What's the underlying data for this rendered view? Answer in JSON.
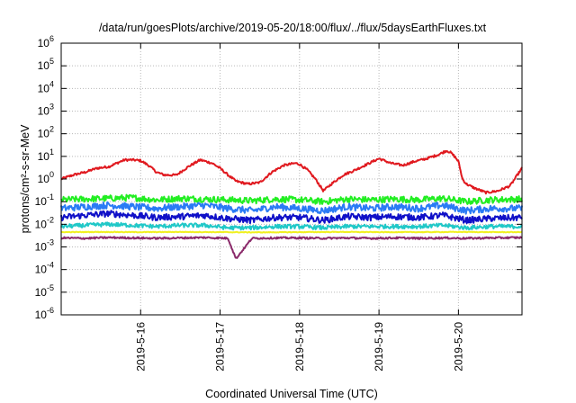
{
  "chart_data": {
    "type": "line",
    "title": "/data/run/goesPlots/archive/2019-05-20/18:00/flux/../flux/5daysEarthFluxes.txt",
    "xlabel": "Coordinated Universal Time (UTC)",
    "ylabel": "protons/cm²-s-sr-MeV",
    "y_scale": "log",
    "ylim_exp": [
      -6,
      6
    ],
    "y_tick_exps": [
      -6,
      -5,
      -4,
      -3,
      -2,
      -1,
      0,
      1,
      2,
      3,
      4,
      5,
      6
    ],
    "xlim_days": [
      0,
      5.8
    ],
    "x_tick_labels": [
      "2019-5-16",
      "2019-5-17",
      "2019-5-18",
      "2019-5-19",
      "2019-5-20"
    ],
    "x_tick_days": [
      1,
      2,
      3,
      4,
      5
    ],
    "grid": true,
    "legend": "none",
    "series": [
      {
        "color": "#e0191f",
        "x": [
          0,
          0.15,
          0.3,
          0.45,
          0.6,
          0.75,
          0.8,
          0.9,
          1.0,
          1.1,
          1.2,
          1.3,
          1.45,
          1.6,
          1.75,
          1.9,
          2.0,
          2.1,
          2.2,
          2.35,
          2.5,
          2.65,
          2.8,
          2.95,
          3.0,
          3.1,
          3.2,
          3.3,
          3.4,
          3.55,
          3.7,
          3.85,
          4.0,
          4.15,
          4.3,
          4.45,
          4.6,
          4.75,
          4.85,
          4.9,
          4.95,
          5.0,
          5.05,
          5.1,
          5.2,
          5.35,
          5.5,
          5.65,
          5.8
        ],
        "y": [
          1.0,
          1.5,
          2.0,
          3.0,
          3.5,
          6.0,
          7.0,
          7.0,
          6.5,
          4.0,
          2.0,
          1.5,
          1.5,
          3.5,
          7.0,
          5.0,
          3.0,
          1.5,
          0.8,
          0.6,
          0.7,
          2.0,
          4.0,
          5.0,
          4.5,
          2.5,
          1.0,
          0.3,
          0.6,
          1.5,
          2.5,
          4.5,
          8.0,
          5.0,
          4.0,
          6.0,
          8.0,
          12.0,
          18.0,
          15.0,
          10.0,
          6.0,
          1.0,
          0.6,
          0.4,
          0.25,
          0.3,
          0.5,
          3.0
        ]
      },
      {
        "color": "#22ee22",
        "x": [
          0,
          0.3,
          0.6,
          0.9,
          1.2,
          1.5,
          1.8,
          2.1,
          2.4,
          2.7,
          3.0,
          3.3,
          3.6,
          3.9,
          4.2,
          4.5,
          4.8,
          5.1,
          5.4,
          5.8
        ],
        "y": [
          0.12,
          0.13,
          0.14,
          0.15,
          0.12,
          0.14,
          0.13,
          0.12,
          0.11,
          0.13,
          0.12,
          0.1,
          0.13,
          0.12,
          0.13,
          0.12,
          0.14,
          0.1,
          0.12,
          0.13
        ]
      },
      {
        "color": "#2a7bf5",
        "x": [
          0,
          0.3,
          0.6,
          0.9,
          1.2,
          1.5,
          1.8,
          2.1,
          2.4,
          2.7,
          3.0,
          3.3,
          3.6,
          3.9,
          4.2,
          4.5,
          4.8,
          5.1,
          5.4,
          5.8
        ],
        "y": [
          0.05,
          0.06,
          0.07,
          0.06,
          0.05,
          0.06,
          0.07,
          0.05,
          0.04,
          0.06,
          0.05,
          0.04,
          0.06,
          0.05,
          0.06,
          0.05,
          0.07,
          0.04,
          0.05,
          0.05
        ]
      },
      {
        "color": "#1010c8",
        "x": [
          0,
          0.3,
          0.6,
          0.9,
          1.2,
          1.5,
          1.8,
          2.1,
          2.4,
          2.7,
          3.0,
          3.3,
          3.6,
          3.9,
          4.2,
          4.5,
          4.8,
          5.1,
          5.4,
          5.8
        ],
        "y": [
          0.02,
          0.025,
          0.03,
          0.025,
          0.02,
          0.022,
          0.025,
          0.018,
          0.015,
          0.02,
          0.02,
          0.015,
          0.022,
          0.02,
          0.022,
          0.02,
          0.025,
          0.015,
          0.018,
          0.02
        ]
      },
      {
        "color": "#20c8c8",
        "x": [
          0,
          0.3,
          0.6,
          0.9,
          1.2,
          1.5,
          1.8,
          2.1,
          2.4,
          2.7,
          3.0,
          3.3,
          3.6,
          3.9,
          4.2,
          4.5,
          4.8,
          5.1,
          5.4,
          5.8
        ],
        "y": [
          0.008,
          0.009,
          0.01,
          0.009,
          0.008,
          0.009,
          0.009,
          0.007,
          0.007,
          0.008,
          0.008,
          0.007,
          0.008,
          0.008,
          0.008,
          0.008,
          0.009,
          0.007,
          0.008,
          0.008
        ]
      },
      {
        "color": "#f0f020",
        "x": [
          0,
          0.5,
          1.0,
          1.5,
          2.0,
          2.5,
          3.0,
          3.5,
          4.0,
          4.5,
          5.0,
          5.5,
          5.8
        ],
        "y": [
          0.0045,
          0.0046,
          0.0045,
          0.0046,
          0.0045,
          0.0044,
          0.0045,
          0.0046,
          0.0045,
          0.0045,
          0.0046,
          0.0045,
          0.0045
        ]
      },
      {
        "color": "#8a2a6a",
        "x": [
          0,
          0.3,
          0.6,
          0.9,
          1.2,
          1.5,
          1.8,
          2.1,
          2.2,
          2.4,
          2.7,
          3.0,
          3.3,
          3.6,
          3.9,
          4.2,
          4.5,
          4.8,
          5.1,
          5.4,
          5.8
        ],
        "y": [
          0.0025,
          0.0024,
          0.0026,
          0.0025,
          0.0024,
          0.0025,
          0.0026,
          0.0024,
          0.0003,
          0.0024,
          0.0025,
          0.0025,
          0.0024,
          0.0025,
          0.0024,
          0.0025,
          0.0024,
          0.0025,
          0.0024,
          0.0025,
          0.0026
        ]
      }
    ]
  }
}
